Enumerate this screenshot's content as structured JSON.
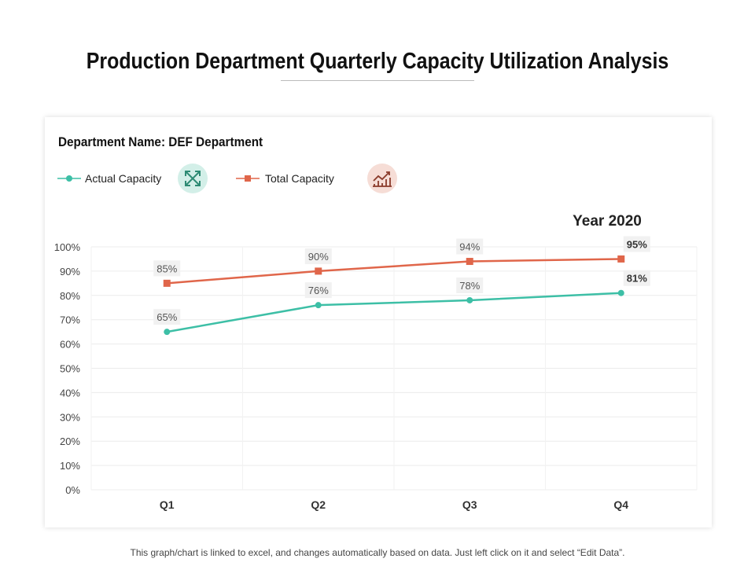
{
  "title": "Production Department Quarterly Capacity Utilization Analysis",
  "department_label": "Department Name: DEF Department",
  "footer": "This graph/chart is linked to excel, and changes automatically based on data. Just left click on it and select “Edit Data”.",
  "icons": {
    "actual": "expand-arrows-icon",
    "total": "growth-chart-icon"
  },
  "chart_data": {
    "type": "line",
    "title": "Year 2020",
    "categories": [
      "Q1",
      "Q2",
      "Q3",
      "Q4"
    ],
    "ylim": [
      0,
      100
    ],
    "yticks": [
      "0%",
      "10%",
      "20%",
      "30%",
      "40%",
      "50%",
      "60%",
      "70%",
      "80%",
      "90%",
      "100%"
    ],
    "grid": true,
    "legend_placement": "top-left",
    "series": [
      {
        "name": "Actual Capacity",
        "values": [
          65,
          76,
          78,
          81
        ],
        "labels": [
          "65%",
          "76%",
          "78%",
          "81%"
        ],
        "color": "#3dbfa6",
        "marker": "circle"
      },
      {
        "name": "Total Capacity",
        "values": [
          85,
          90,
          94,
          95
        ],
        "labels": [
          "85%",
          "90%",
          "94%",
          "95%"
        ],
        "color": "#e0664a",
        "marker": "square"
      }
    ]
  }
}
